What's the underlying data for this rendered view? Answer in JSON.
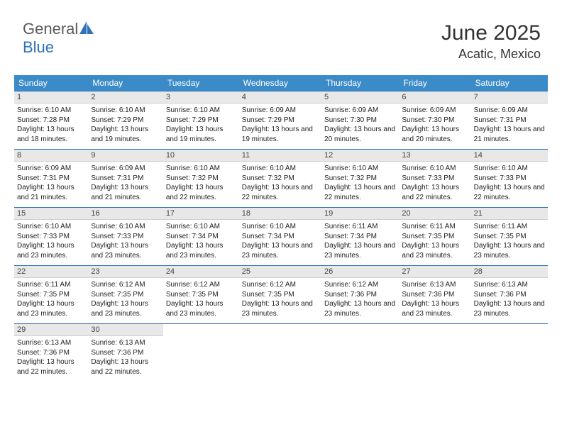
{
  "logo": {
    "part1": "General",
    "part2": "Blue"
  },
  "header": {
    "month": "June 2025",
    "location": "Acatic, Mexico"
  },
  "weekdays": [
    "Sunday",
    "Monday",
    "Tuesday",
    "Wednesday",
    "Thursday",
    "Friday",
    "Saturday"
  ],
  "colors": {
    "header_bg": "#3b8bc9",
    "header_text": "#ffffff",
    "row_border": "#2d72b8",
    "daynum_bg": "#e8e8e8",
    "logo_blue": "#2d72b8",
    "logo_grey": "#5a5a5a"
  },
  "days": [
    {
      "n": 1,
      "sunrise": "6:10 AM",
      "sunset": "7:28 PM",
      "daylight": "13 hours and 18 minutes."
    },
    {
      "n": 2,
      "sunrise": "6:10 AM",
      "sunset": "7:29 PM",
      "daylight": "13 hours and 19 minutes."
    },
    {
      "n": 3,
      "sunrise": "6:10 AM",
      "sunset": "7:29 PM",
      "daylight": "13 hours and 19 minutes."
    },
    {
      "n": 4,
      "sunrise": "6:09 AM",
      "sunset": "7:29 PM",
      "daylight": "13 hours and 19 minutes."
    },
    {
      "n": 5,
      "sunrise": "6:09 AM",
      "sunset": "7:30 PM",
      "daylight": "13 hours and 20 minutes."
    },
    {
      "n": 6,
      "sunrise": "6:09 AM",
      "sunset": "7:30 PM",
      "daylight": "13 hours and 20 minutes."
    },
    {
      "n": 7,
      "sunrise": "6:09 AM",
      "sunset": "7:31 PM",
      "daylight": "13 hours and 21 minutes."
    },
    {
      "n": 8,
      "sunrise": "6:09 AM",
      "sunset": "7:31 PM",
      "daylight": "13 hours and 21 minutes."
    },
    {
      "n": 9,
      "sunrise": "6:09 AM",
      "sunset": "7:31 PM",
      "daylight": "13 hours and 21 minutes."
    },
    {
      "n": 10,
      "sunrise": "6:10 AM",
      "sunset": "7:32 PM",
      "daylight": "13 hours and 22 minutes."
    },
    {
      "n": 11,
      "sunrise": "6:10 AM",
      "sunset": "7:32 PM",
      "daylight": "13 hours and 22 minutes."
    },
    {
      "n": 12,
      "sunrise": "6:10 AM",
      "sunset": "7:32 PM",
      "daylight": "13 hours and 22 minutes."
    },
    {
      "n": 13,
      "sunrise": "6:10 AM",
      "sunset": "7:33 PM",
      "daylight": "13 hours and 22 minutes."
    },
    {
      "n": 14,
      "sunrise": "6:10 AM",
      "sunset": "7:33 PM",
      "daylight": "13 hours and 22 minutes."
    },
    {
      "n": 15,
      "sunrise": "6:10 AM",
      "sunset": "7:33 PM",
      "daylight": "13 hours and 23 minutes."
    },
    {
      "n": 16,
      "sunrise": "6:10 AM",
      "sunset": "7:33 PM",
      "daylight": "13 hours and 23 minutes."
    },
    {
      "n": 17,
      "sunrise": "6:10 AM",
      "sunset": "7:34 PM",
      "daylight": "13 hours and 23 minutes."
    },
    {
      "n": 18,
      "sunrise": "6:10 AM",
      "sunset": "7:34 PM",
      "daylight": "13 hours and 23 minutes."
    },
    {
      "n": 19,
      "sunrise": "6:11 AM",
      "sunset": "7:34 PM",
      "daylight": "13 hours and 23 minutes."
    },
    {
      "n": 20,
      "sunrise": "6:11 AM",
      "sunset": "7:35 PM",
      "daylight": "13 hours and 23 minutes."
    },
    {
      "n": 21,
      "sunrise": "6:11 AM",
      "sunset": "7:35 PM",
      "daylight": "13 hours and 23 minutes."
    },
    {
      "n": 22,
      "sunrise": "6:11 AM",
      "sunset": "7:35 PM",
      "daylight": "13 hours and 23 minutes."
    },
    {
      "n": 23,
      "sunrise": "6:12 AM",
      "sunset": "7:35 PM",
      "daylight": "13 hours and 23 minutes."
    },
    {
      "n": 24,
      "sunrise": "6:12 AM",
      "sunset": "7:35 PM",
      "daylight": "13 hours and 23 minutes."
    },
    {
      "n": 25,
      "sunrise": "6:12 AM",
      "sunset": "7:35 PM",
      "daylight": "13 hours and 23 minutes."
    },
    {
      "n": 26,
      "sunrise": "6:12 AM",
      "sunset": "7:36 PM",
      "daylight": "13 hours and 23 minutes."
    },
    {
      "n": 27,
      "sunrise": "6:13 AM",
      "sunset": "7:36 PM",
      "daylight": "13 hours and 23 minutes."
    },
    {
      "n": 28,
      "sunrise": "6:13 AM",
      "sunset": "7:36 PM",
      "daylight": "13 hours and 23 minutes."
    },
    {
      "n": 29,
      "sunrise": "6:13 AM",
      "sunset": "7:36 PM",
      "daylight": "13 hours and 22 minutes."
    },
    {
      "n": 30,
      "sunrise": "6:13 AM",
      "sunset": "7:36 PM",
      "daylight": "13 hours and 22 minutes."
    }
  ],
  "labels": {
    "sunrise": "Sunrise:",
    "sunset": "Sunset:",
    "daylight": "Daylight:"
  },
  "layout": {
    "start_weekday": 0,
    "total_days": 30,
    "cols": 7
  }
}
